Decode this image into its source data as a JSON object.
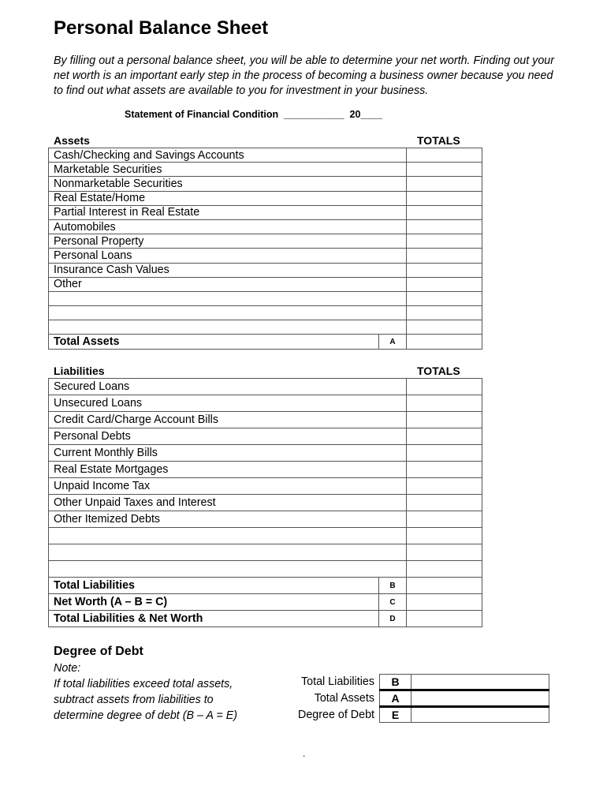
{
  "title": "Personal Balance Sheet",
  "intro": "By filling out a personal balance sheet, you will be able to determine your net worth. Finding out your net worth is an important early step in the process of becoming a business owner because you need to find out what assets are available to you for investment in your business.",
  "statement": "Statement of Financial Condition  ___________  20____",
  "assets": {
    "header": "Assets",
    "totals_header": "TOTALS",
    "items": [
      "Cash/Checking and Savings Accounts",
      "Marketable Securities",
      "Nonmarketable Securities",
      "Real Estate/Home",
      "Partial Interest in Real Estate",
      "Automobiles",
      "Personal Property",
      "Personal Loans",
      "Insurance Cash Values",
      "Other",
      "",
      "",
      ""
    ],
    "total_label": "Total Assets",
    "total_letter": "A"
  },
  "liabilities": {
    "header": "Liabilities",
    "totals_header": "TOTALS",
    "items": [
      "Secured Loans",
      "Unsecured Loans",
      "Credit Card/Charge Account Bills",
      "Personal Debts",
      "Current Monthly Bills",
      "Real Estate Mortgages",
      "Unpaid Income Tax",
      "Other Unpaid Taxes and Interest",
      "Other Itemized Debts",
      "",
      "",
      ""
    ],
    "totals": [
      {
        "label": "Total Liabilities",
        "letter": "B"
      },
      {
        "label": "Net Worth (A – B  = C)",
        "letter": "C"
      },
      {
        "label": "Total Liabilities & Net Worth",
        "letter": "D"
      }
    ]
  },
  "degree_of_debt": {
    "title": "Degree of Debt",
    "note_label": "Note:",
    "note": "If total liabilities exceed total assets, subtract assets from liabilities to determine degree of debt (B – A = E)",
    "rows": [
      {
        "label": "Total Liabilities",
        "letter": "B"
      },
      {
        "label": "Total Assets",
        "letter": "A"
      },
      {
        "label": "Degree of Debt",
        "letter": "E"
      }
    ]
  },
  "footer_mark": "."
}
